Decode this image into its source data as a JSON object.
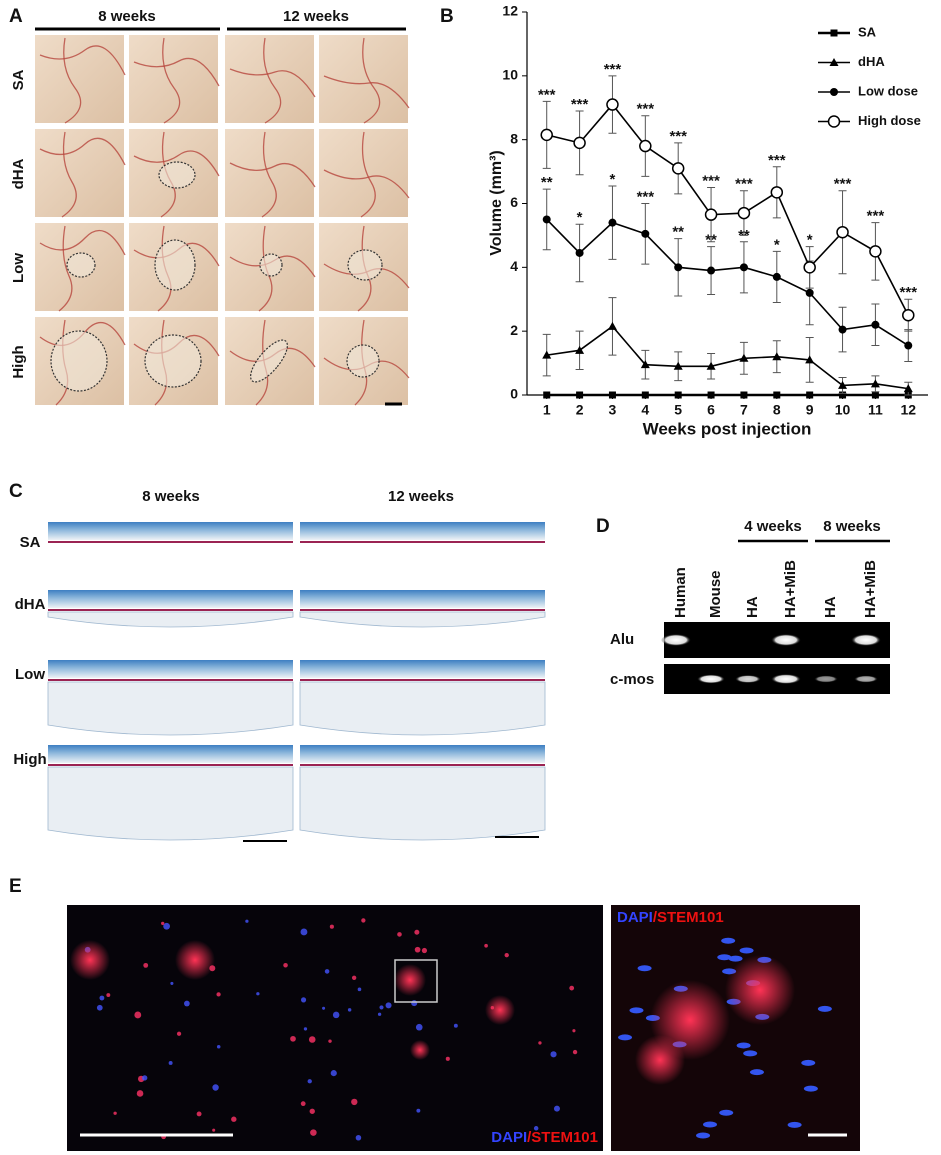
{
  "panel_a": {
    "label": "A",
    "columns": [
      "8 weeks",
      "12 weeks"
    ],
    "rows": [
      "SA",
      "dHA",
      "Low",
      "High"
    ]
  },
  "chart_data": {
    "type": "line",
    "label": "B",
    "x_label": "Weeks post injection",
    "y_label": "Volume (mm³)",
    "x": [
      1,
      2,
      3,
      4,
      5,
      6,
      7,
      8,
      9,
      10,
      11,
      12
    ],
    "xlim": [
      0.4,
      12.6
    ],
    "xticks": [
      1,
      2,
      3,
      4,
      5,
      6,
      7,
      8,
      9,
      10,
      11,
      12
    ],
    "ylim": [
      0,
      12
    ],
    "yticks": [
      0,
      2,
      4,
      6,
      8,
      10,
      12
    ],
    "grid": false,
    "legend": "top-right",
    "series": [
      {
        "name": "SA",
        "color": "#000000",
        "marker": "square",
        "values": [
          0,
          0,
          0,
          0,
          0,
          0,
          0,
          0,
          0,
          0,
          0,
          0
        ],
        "errors": [
          0,
          0,
          0,
          0,
          0,
          0,
          0,
          0,
          0,
          0,
          0,
          0
        ]
      },
      {
        "name": "dHA",
        "color": "#000000",
        "marker": "triangle",
        "values": [
          1.25,
          1.4,
          2.15,
          0.95,
          0.9,
          0.9,
          1.15,
          1.2,
          1.1,
          0.3,
          0.35,
          0.2
        ],
        "errors": [
          0.65,
          0.6,
          0.9,
          0.45,
          0.45,
          0.4,
          0.5,
          0.5,
          0.7,
          0.25,
          0.25,
          0.2
        ]
      },
      {
        "name": "Low dose",
        "color": "#000000",
        "marker": "circle",
        "values": [
          5.5,
          4.45,
          5.4,
          5.05,
          4.0,
          3.9,
          4.0,
          3.7,
          3.2,
          2.05,
          2.2,
          1.55
        ],
        "errors": [
          0.95,
          0.9,
          1.15,
          0.95,
          0.9,
          0.75,
          0.8,
          0.8,
          1.0,
          0.7,
          0.65,
          0.5
        ],
        "significance": [
          "**",
          "*",
          "*",
          "***",
          "**",
          "**",
          "**",
          "*",
          null,
          null,
          null,
          null
        ]
      },
      {
        "name": "High dose",
        "color": "#000000",
        "marker": "open-circle",
        "values": [
          8.15,
          7.9,
          9.1,
          7.8,
          7.1,
          5.65,
          5.7,
          6.35,
          4.0,
          5.1,
          4.5,
          2.5
        ],
        "errors": [
          1.05,
          1.0,
          0.9,
          0.95,
          0.8,
          0.85,
          0.7,
          0.8,
          0.65,
          1.3,
          0.9,
          0.5
        ],
        "significance": [
          "***",
          "***",
          "***",
          "***",
          "***",
          "***",
          "***",
          "***",
          "*",
          "***",
          "***",
          "***"
        ]
      }
    ]
  },
  "panel_c": {
    "label": "C",
    "columns": [
      "8 weeks",
      "12 weeks"
    ],
    "rows": [
      "SA",
      "dHA",
      "Low",
      "High"
    ]
  },
  "panel_d": {
    "label": "D",
    "groups": [
      "4 weeks",
      "8 weeks"
    ],
    "lanes": [
      "Human",
      "Mouse",
      "HA",
      "HA+MiB",
      "HA",
      "HA+MiB"
    ],
    "rows": [
      "Alu",
      "c-mos"
    ]
  },
  "panel_e": {
    "label": "E",
    "main_stain": [
      "DAPI",
      "/STEM101"
    ],
    "inset_stain": [
      "DAPI",
      "/STEM101"
    ]
  }
}
